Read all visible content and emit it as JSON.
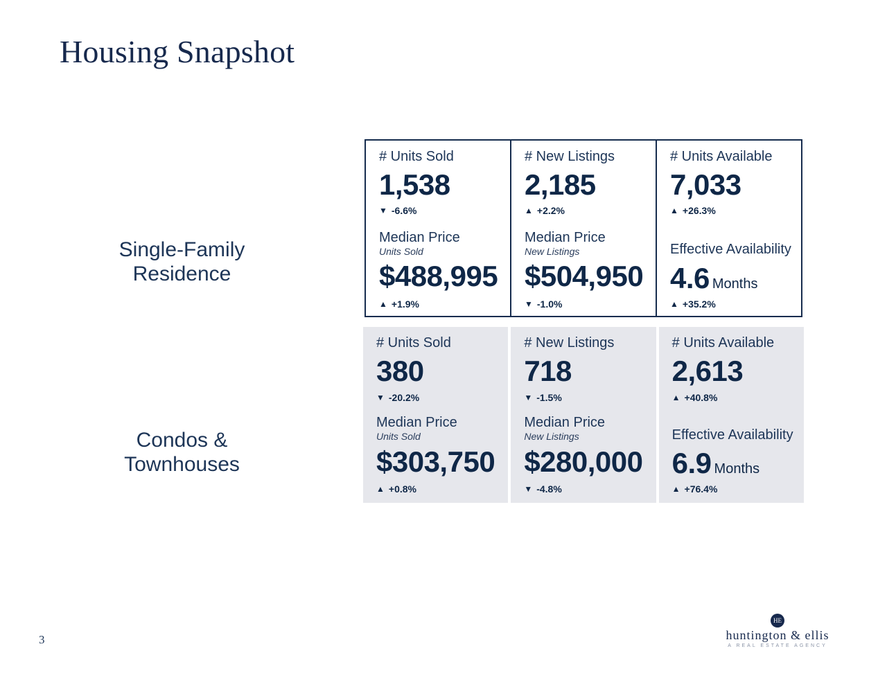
{
  "page": {
    "title": "Housing Snapshot",
    "page_number": "3"
  },
  "sections": [
    {
      "label_lines": [
        "Single-Family",
        "Residence"
      ],
      "units_sold": {
        "label": "# Units Sold",
        "value": "1,538",
        "direction": "down",
        "change": "-6.6%"
      },
      "new_listings": {
        "label": "# New Listings",
        "value": "2,185",
        "direction": "up",
        "change": "+2.2%"
      },
      "units_available": {
        "label": "# Units Available",
        "value": "7,033",
        "direction": "up",
        "change": "+26.3%"
      },
      "median_price_sold": {
        "label": "Median Price",
        "sub": "Units Sold",
        "value": "$488,995",
        "direction": "up",
        "change": "+1.9%"
      },
      "median_price_listings": {
        "label": "Median Price",
        "sub": "New Listings",
        "value": "$504,950",
        "direction": "down",
        "change": "-1.0%"
      },
      "effective_availability": {
        "label": "Effective Availability",
        "value": "4.6",
        "unit": "Months",
        "direction": "up",
        "change": "+35.2%"
      }
    },
    {
      "label_lines": [
        "Condos &",
        "Townhouses"
      ],
      "units_sold": {
        "label": "# Units Sold",
        "value": "380",
        "direction": "down",
        "change": "-20.2%"
      },
      "new_listings": {
        "label": "# New Listings",
        "value": "718",
        "direction": "down",
        "change": "-1.5%"
      },
      "units_available": {
        "label": "# Units Available",
        "value": "2,613",
        "direction": "up",
        "change": "+40.8%"
      },
      "median_price_sold": {
        "label": "Median Price",
        "sub": "Units Sold",
        "value": "$303,750",
        "direction": "up",
        "change": "+0.8%"
      },
      "median_price_listings": {
        "label": "Median Price",
        "sub": "New Listings",
        "value": "$280,000",
        "direction": "down",
        "change": "-4.8%"
      },
      "effective_availability": {
        "label": "Effective Availability",
        "value": "6.9",
        "unit": "Months",
        "direction": "up",
        "change": "+76.4%"
      }
    }
  ],
  "icons": {
    "up": "▲",
    "down": "▼"
  },
  "logo": {
    "mark": "HE",
    "name": "huntington & ellis",
    "tagline": "A REAL ESTATE AGENCY"
  },
  "colors": {
    "navy": "#0f2747",
    "panel_gray": "#e6e7ec",
    "border": "#162c4e"
  }
}
